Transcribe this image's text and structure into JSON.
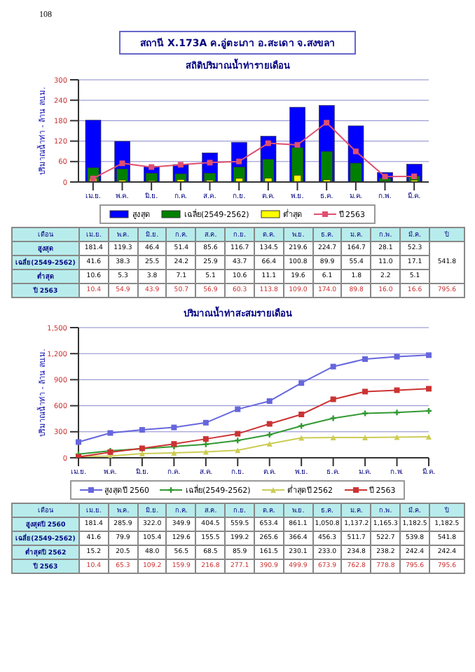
{
  "chart_data": [
    {
      "type": "bar",
      "title": "สถานี X.173A ค.อู่ตะเภา อ.สะเดา จ.สงขลา",
      "subtitle": "สถิติปริมาณน้ำท่ารายเดือน",
      "ylabel": "ปริมาณน้ำท่า - ล้าน ลบ.ม.",
      "annotations": [
        "108",
        "เดือน",
        "ปี",
        "541.8",
        "795.6"
      ],
      "categories": [
        "เม.ย.",
        "พ.ค.",
        "มิ.ย.",
        "ก.ค.",
        "ส.ค.",
        "ก.ย.",
        "ต.ค.",
        "พ.ย.",
        "ธ.ค.",
        "ม.ค.",
        "ก.พ.",
        "มี.ค."
      ],
      "ylim": [
        0,
        300
      ],
      "yticks": [
        0,
        60,
        120,
        180,
        240,
        300
      ],
      "grid": "y",
      "legend": "bottom",
      "series": [
        {
          "name": "สูงสุด",
          "color": "#0000ff",
          "values": [
            181.4,
            119.3,
            46.4,
            51.4,
            85.6,
            116.7,
            134.5,
            219.6,
            224.7,
            164.7,
            28.1,
            52.3
          ],
          "value_labels": [
            "181.4",
            "119.3",
            "46.4",
            "51.4",
            "85.6",
            "116.7",
            "134.5",
            "219.6",
            "224.7",
            "164.7",
            "28.1",
            "52.3"
          ]
        },
        {
          "name": "เฉลี่ย(2549-2562)",
          "color": "#008000",
          "values": [
            41.6,
            38.3,
            25.5,
            24.2,
            25.9,
            43.7,
            66.4,
            100.8,
            89.9,
            55.4,
            11.0,
            17.1
          ],
          "value_labels": [
            "41.6",
            "38.3",
            "25.5",
            "24.2",
            "25.9",
            "43.7",
            "66.4",
            "100.8",
            "89.9",
            "55.4",
            "11.0",
            "17.1"
          ]
        },
        {
          "name": "ต่ำสุด",
          "color": "#ffff00",
          "values": [
            10.6,
            5.3,
            3.8,
            7.1,
            5.1,
            10.6,
            11.1,
            19.6,
            6.1,
            1.8,
            2.2,
            5.1
          ],
          "value_labels": [
            "10.6",
            "5.3",
            "3.8",
            "7.1",
            "5.1",
            "10.6",
            "11.1",
            "19.6",
            "6.1",
            "1.8",
            "2.2",
            "5.1"
          ]
        },
        {
          "name": "ปี 2563",
          "type": "line",
          "color": "#e05070",
          "marker": "square",
          "values": [
            10.4,
            54.9,
            43.9,
            50.7,
            56.9,
            60.3,
            113.8,
            109.0,
            174.0,
            89.8,
            16.0,
            16.6
          ],
          "value_labels": [
            "10.4",
            "54.9",
            "43.9",
            "50.7",
            "56.9",
            "60.3",
            "113.8",
            "109.0",
            "174.0",
            "89.8",
            "16.0",
            "16.6"
          ]
        }
      ]
    },
    {
      "type": "line",
      "title": "ปริมาณน้ำท่าสะสมรายเดือน",
      "ylabel": "ปริมาณน้ำท่า - ล้าน ลบ.ม.",
      "annotations": [
        "เดือน",
        "ปี",
        "1,182.5",
        "541.8",
        "242.4",
        "795.6"
      ],
      "categories": [
        "เม.ย.",
        "พ.ค.",
        "มิ.ย.",
        "ก.ค.",
        "ส.ค.",
        "ก.ย.",
        "ต.ค.",
        "พ.ย.",
        "ธ.ค.",
        "ม.ค.",
        "ก.พ.",
        "มี.ค."
      ],
      "ylim": [
        0,
        1500
      ],
      "yticks": [
        0,
        {
          "value": 300,
          "label": "300"
        },
        {
          "value": 600,
          "label": "600"
        },
        {
          "value": 900,
          "label": "900"
        },
        {
          "value": 1200,
          "label": "1,200"
        },
        {
          "value": 1500,
          "label": "1,500"
        }
      ],
      "grid": "y",
      "legend": "bottom",
      "series": [
        {
          "name": "สูงสุดปี 2560",
          "color": "#6666dd",
          "marker": "square",
          "values": [
            181.4,
            285.9,
            322.0,
            349.9,
            404.5,
            559.5,
            653.4,
            861.1,
            1050.8,
            1137.2,
            1165.3,
            1182.5
          ],
          "value_labels": [
            "181.4",
            "285.9",
            "322.0",
            "349.9",
            "404.5",
            "559.5",
            "653.4",
            "861.1",
            "1,050.8",
            "1,137.2",
            "1,165.3",
            "1,182.5"
          ]
        },
        {
          "name": "เฉลี่ย(2549-2562)",
          "color": "#339933",
          "marker": "cross",
          "values": [
            41.6,
            79.9,
            105.4,
            129.6,
            155.5,
            199.2,
            265.6,
            366.4,
            456.3,
            511.7,
            522.7,
            539.8
          ],
          "value_labels": [
            "41.6",
            "79.9",
            "105.4",
            "129.6",
            "155.5",
            "199.2",
            "265.6",
            "366.4",
            "456.3",
            "511.7",
            "522.7",
            "539.8"
          ]
        },
        {
          "name": "ต่ำสุดปี 2562",
          "color": "#cccc55",
          "marker": "triangle",
          "values": [
            15.2,
            20.5,
            48.0,
            56.5,
            68.5,
            85.9,
            161.5,
            230.1,
            233.0,
            234.8,
            238.2,
            242.4
          ],
          "value_labels": [
            "15.2",
            "20.5",
            "48.0",
            "56.5",
            "68.5",
            "85.9",
            "161.5",
            "230.1",
            "233.0",
            "234.8",
            "238.2",
            "242.4"
          ]
        },
        {
          "name": "ปี 2563",
          "color": "#cc3333",
          "marker": "square",
          "values": [
            10.4,
            65.3,
            109.2,
            159.9,
            216.8,
            277.1,
            390.9,
            499.9,
            673.9,
            762.8,
            778.8,
            795.6
          ],
          "value_labels": [
            "10.4",
            "65.3",
            "109.2",
            "159.9",
            "216.8",
            "277.1",
            "390.9",
            "499.9",
            "673.9",
            "762.8",
            "778.8",
            "795.6"
          ]
        }
      ]
    }
  ]
}
